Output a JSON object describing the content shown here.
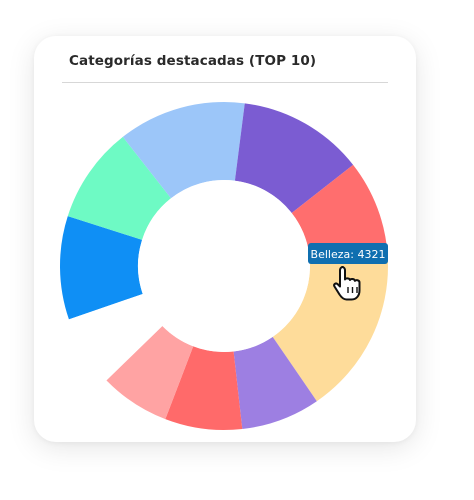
{
  "card": {
    "title": "Categorías destacadas (TOP 10)"
  },
  "tooltip": {
    "text": "Belleza: 4321"
  },
  "chart_data": {
    "type": "pie",
    "donut": true,
    "title": "Categorías destacadas (TOP 10)",
    "slices": [
      {
        "name": "",
        "value": 10.2,
        "color": "#0F8FF5"
      },
      {
        "name": "",
        "value": 9.5,
        "color": "#6EFAC4"
      },
      {
        "name": "Belleza",
        "value": 12.6,
        "color": "#9CC6F9"
      },
      {
        "name": "",
        "value": 12.4,
        "color": "#7B5CD2"
      },
      {
        "name": "",
        "value": 9.7,
        "color": "#FF6E6E"
      },
      {
        "name": "",
        "value": 16.3,
        "color": "#FEDC9A"
      },
      {
        "name": "",
        "value": 7.8,
        "color": "#9D7FE2"
      },
      {
        "name": "",
        "value": 7.6,
        "color": "#FF6A6A"
      },
      {
        "name": "",
        "value": 6.9,
        "color": "#FFA3A3"
      },
      {
        "name": "",
        "value": 7.0,
        "color": "#FFFFFF"
      }
    ],
    "highlight": {
      "name": "Belleza",
      "value": 4321
    },
    "legend": "none"
  }
}
